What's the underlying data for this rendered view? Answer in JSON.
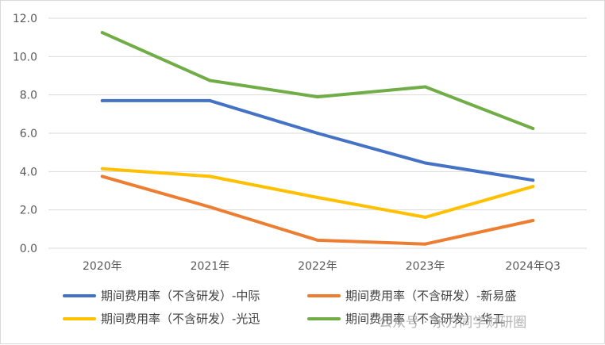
{
  "chart_data": {
    "type": "line",
    "categories": [
      "2020年",
      "2021年",
      "2022年",
      "2023年",
      "2024年Q3"
    ],
    "ylim": [
      0,
      12
    ],
    "yticks": [
      "0.0",
      "2.0",
      "4.0",
      "6.0",
      "8.0",
      "10.0",
      "12.0"
    ],
    "grid": true,
    "legend_position": "bottom",
    "series": [
      {
        "name": "期间费用率（不含研发）-中际",
        "color": "#4472C4",
        "values": [
          7.7,
          7.7,
          6.0,
          4.45,
          3.55
        ]
      },
      {
        "name": "期间费用率（不含研发）-新易盛",
        "color": "#ED7D31",
        "values": [
          3.75,
          2.15,
          0.42,
          0.22,
          1.45
        ]
      },
      {
        "name": "期间费用率（不含研发）-光迅",
        "color": "#FFC000",
        "values": [
          4.15,
          3.75,
          2.65,
          1.62,
          3.22
        ]
      },
      {
        "name": "期间费用率（不含研发）-华工",
        "color": "#70AD47",
        "values": [
          11.25,
          8.75,
          7.9,
          8.42,
          6.25
        ]
      }
    ]
  },
  "watermark": "公众号 · 东方同学财研圈"
}
